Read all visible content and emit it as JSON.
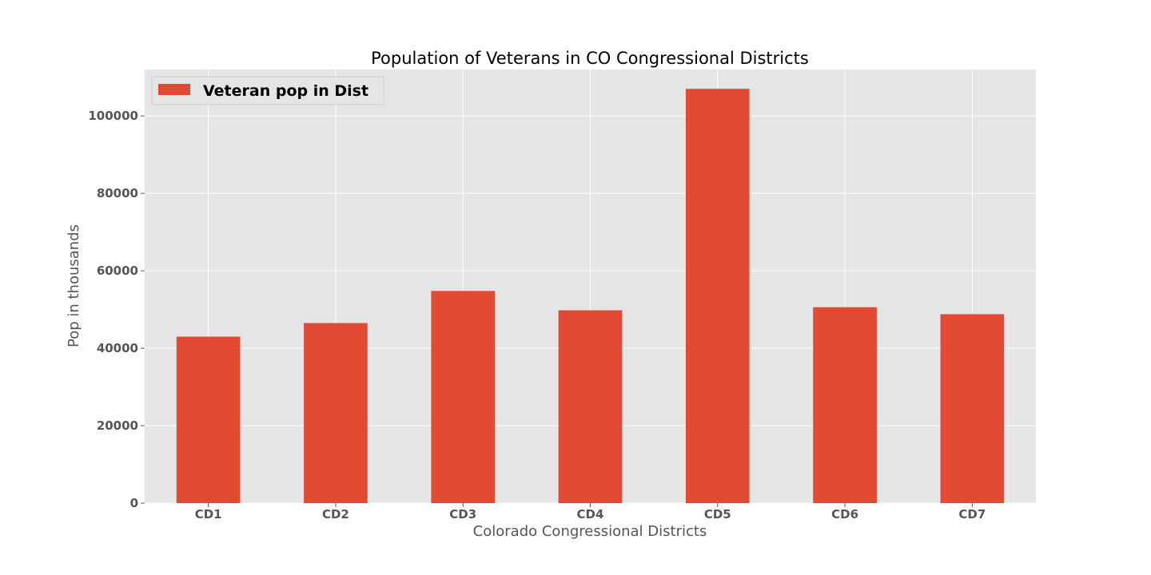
{
  "chart_data": {
    "type": "bar",
    "title": "Population of Veterans in CO Congressional Districts",
    "xlabel": "Colorado Congressional Districts",
    "ylabel": "Pop in thousands",
    "categories": [
      "CD1",
      "CD2",
      "CD3",
      "CD4",
      "CD5",
      "CD6",
      "CD7"
    ],
    "series": [
      {
        "name": "Veteran pop in Dist",
        "values": [
          43000,
          46500,
          54800,
          49800,
          107000,
          50600,
          48800
        ],
        "color": "#e24a33"
      }
    ],
    "ylim": [
      0,
      112000
    ],
    "yticks": [
      0,
      20000,
      40000,
      60000,
      80000,
      100000
    ],
    "ytick_labels": [
      "0",
      "20000",
      "40000",
      "60000",
      "80000",
      "100000"
    ],
    "grid": true,
    "legend_position": "top-left",
    "background_color": "#e5e5e5",
    "grid_color": "#ffffff"
  }
}
